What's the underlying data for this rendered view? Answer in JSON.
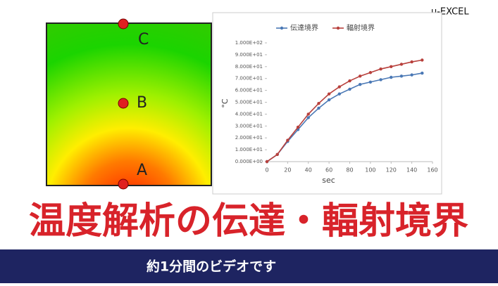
{
  "brand": "u-EXCEL",
  "points": [
    "C",
    "B",
    "A"
  ],
  "headline": "温度解析の伝達・輻射境界",
  "banner": "約1分間のビデオです",
  "chart_data": {
    "type": "line",
    "x": [
      0,
      10,
      20,
      30,
      40,
      50,
      60,
      70,
      80,
      90,
      100,
      110,
      120,
      130,
      140,
      150
    ],
    "series": [
      {
        "name": "伝達境界",
        "color": "#4a78b5",
        "values": [
          0,
          6,
          17,
          27,
          37,
          45,
          52,
          57,
          61,
          65,
          67,
          69,
          71,
          72,
          73,
          74.5
        ]
      },
      {
        "name": "輻射境界",
        "color": "#b8403c",
        "values": [
          0,
          6,
          18,
          29,
          40,
          49,
          57,
          63,
          68,
          72,
          75,
          78,
          80,
          82,
          84,
          85.5
        ]
      }
    ],
    "xlabel": "sec",
    "ylabel": "°C",
    "xlim": [
      0,
      160
    ],
    "xticks": [
      0,
      20,
      40,
      60,
      80,
      100,
      120,
      140,
      160
    ],
    "ylim": [
      0,
      100
    ],
    "yticks": [
      {
        "value": 0,
        "label": "0.000E+00"
      },
      {
        "value": 10,
        "label": "1.000E+01"
      },
      {
        "value": 20,
        "label": "2.000E+01"
      },
      {
        "value": 30,
        "label": "3.000E+01"
      },
      {
        "value": 40,
        "label": "4.000E+01"
      },
      {
        "value": 50,
        "label": "5.000E+01"
      },
      {
        "value": 60,
        "label": "6.000E+01"
      },
      {
        "value": 70,
        "label": "7.000E+01"
      },
      {
        "value": 80,
        "label": "8.000E+01"
      },
      {
        "value": 90,
        "label": "9.000E+01"
      },
      {
        "value": 100,
        "label": "1.000E+02"
      }
    ],
    "legend": "top"
  }
}
